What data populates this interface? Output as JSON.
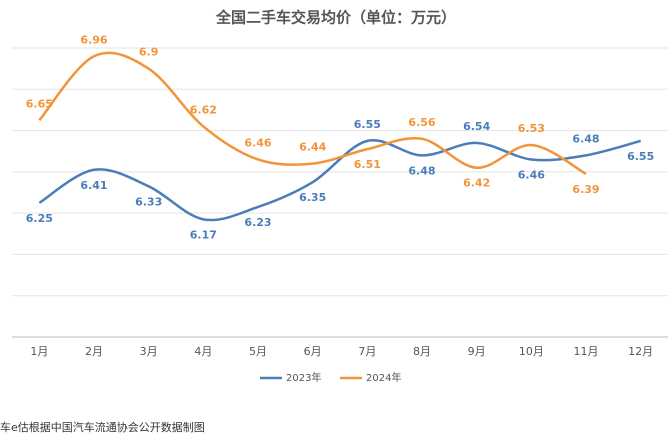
{
  "chart_data": {
    "type": "line",
    "title": "全国二手车交易均价（单位：万元）",
    "categories": [
      "1月",
      "2月",
      "3月",
      "4月",
      "5月",
      "6月",
      "7月",
      "8月",
      "9月",
      "10月",
      "11月",
      "12月"
    ],
    "series": [
      {
        "name": "2023年",
        "color": "#4a7ebb",
        "values": [
          6.25,
          6.41,
          6.33,
          6.17,
          6.23,
          6.35,
          6.55,
          6.48,
          6.54,
          6.46,
          6.48,
          6.55
        ]
      },
      {
        "name": "2024年",
        "color": "#f0953a",
        "values": [
          6.65,
          6.96,
          6.9,
          6.62,
          6.46,
          6.44,
          6.51,
          6.56,
          6.42,
          6.53,
          6.39,
          null
        ]
      }
    ],
    "ylim": [
      5.6,
      7.0
    ],
    "yticks": [
      5.6,
      5.8,
      6.0,
      6.2,
      6.4,
      6.6,
      6.8,
      7.0
    ],
    "grid": true,
    "smooth": true,
    "legend": "bottom",
    "source": "车e估根据中国汽车流通协会公开数据制图"
  }
}
